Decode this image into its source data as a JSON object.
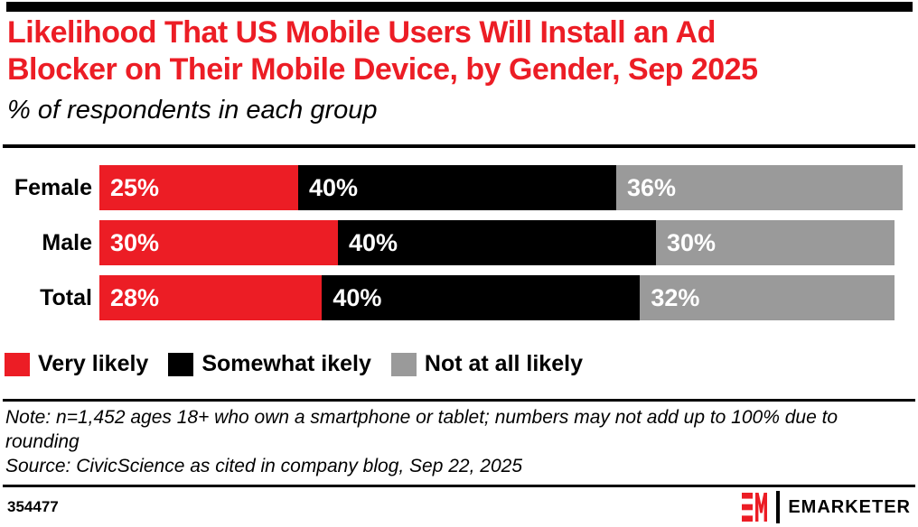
{
  "header": {
    "title_lines": [
      "Likelihood That US Mobile Users Will Install an Ad",
      "Blocker on Their Mobile Device, by Gender, Sep 2025"
    ],
    "subtitle": "% of respondents in each group"
  },
  "chart_data": {
    "type": "bar",
    "orientation": "horizontal-stacked",
    "categories": [
      "Female",
      "Male",
      "Total"
    ],
    "series": [
      {
        "name": "Very likely",
        "color": "#EC1D25",
        "values": [
          25,
          30,
          28
        ]
      },
      {
        "name": "Somewhat ikely",
        "color": "#000000",
        "values": [
          40,
          40,
          40
        ]
      },
      {
        "name": "Not at all likely",
        "color": "#9A9A9A",
        "values": [
          36,
          30,
          32
        ]
      }
    ],
    "value_suffix": "%",
    "xlim": [
      0,
      101
    ],
    "grid": false,
    "legend_position": "bottom",
    "value_labels": "inside-start"
  },
  "notes": {
    "note": "Note: n=1,452 ages 18+ who own a smartphone or tablet; numbers may not add up to 100% due to rounding",
    "source": "Source: CivicScience as cited in company blog, Sep 22, 2025"
  },
  "footer": {
    "chart_id": "354477",
    "brand": "EMARKETER"
  },
  "colors": {
    "accent_red": "#EC1D25",
    "bar_black": "#000000",
    "bar_gray": "#9A9A9A"
  }
}
